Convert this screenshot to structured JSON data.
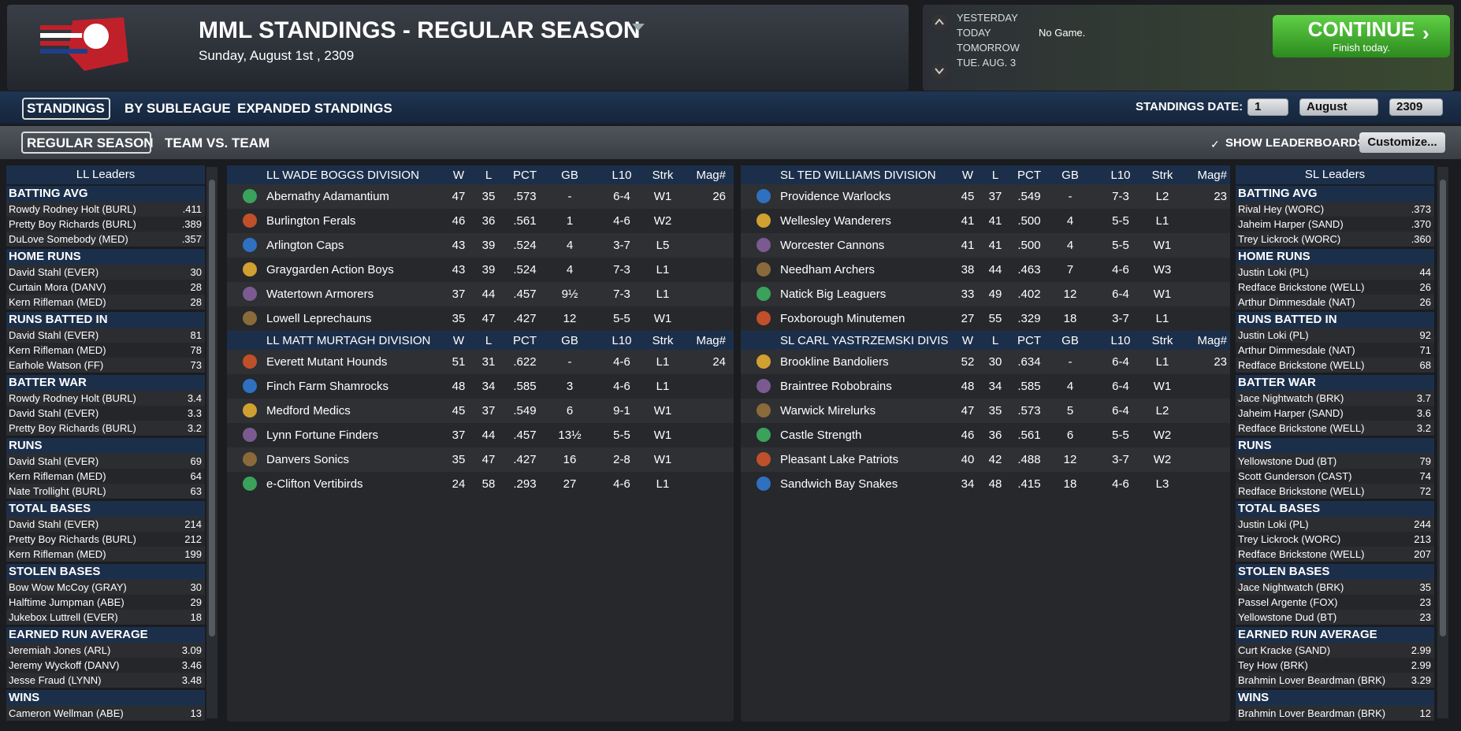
{
  "header": {
    "title": "MML STANDINGS - REGULAR SEASON",
    "date": "Sunday, August 1st , 2309"
  },
  "day_nav": {
    "days": [
      "YESTERDAY",
      "TODAY",
      "TOMORROW",
      "TUE. AUG. 3"
    ],
    "status": "No Game."
  },
  "continue": {
    "label": "CONTINUE",
    "sub": "Finish today."
  },
  "tabs": [
    "STANDINGS",
    "BY SUBLEAGUE",
    "EXPANDED STANDINGS"
  ],
  "standings_date": {
    "label": "STANDINGS DATE:",
    "day": "1",
    "month": "August",
    "year": "2309"
  },
  "subtabs": [
    "REGULAR SEASON",
    "TEAM VS. TEAM"
  ],
  "show_leaderboards": "SHOW LEADERBOARDS",
  "customize": "Customize...",
  "columns": [
    "W",
    "L",
    "PCT",
    "GB",
    "L10",
    "Strk",
    "Mag#"
  ],
  "leaders": [
    {
      "title": "LL Leaders",
      "sections": [
        {
          "title": "BATTING AVG",
          "rows": [
            [
              "Rowdy Rodney Holt (BURL)",
              ".411"
            ],
            [
              "Pretty Boy Richards (BURL)",
              ".389"
            ],
            [
              "DuLove Somebody (MED)",
              ".357"
            ]
          ]
        },
        {
          "title": "HOME RUNS",
          "rows": [
            [
              "David Stahl (EVER)",
              30
            ],
            [
              "Curtain Mora (DANV)",
              28
            ],
            [
              "Kern Rifleman (MED)",
              28
            ]
          ]
        },
        {
          "title": "RUNS BATTED IN",
          "rows": [
            [
              "David Stahl (EVER)",
              81
            ],
            [
              "Kern Rifleman (MED)",
              78
            ],
            [
              "Earhole Watson (FF)",
              73
            ]
          ]
        },
        {
          "title": "BATTER WAR",
          "rows": [
            [
              "Rowdy Rodney Holt (BURL)",
              3.4
            ],
            [
              "David Stahl (EVER)",
              3.3
            ],
            [
              "Pretty Boy Richards (BURL)",
              3.2
            ]
          ]
        },
        {
          "title": "RUNS",
          "rows": [
            [
              "David Stahl (EVER)",
              69
            ],
            [
              "Kern Rifleman (MED)",
              64
            ],
            [
              "Nate Trollight (BURL)",
              63
            ]
          ]
        },
        {
          "title": "TOTAL BASES",
          "rows": [
            [
              "David Stahl (EVER)",
              214
            ],
            [
              "Pretty Boy Richards (BURL)",
              212
            ],
            [
              "Kern Rifleman (MED)",
              199
            ]
          ]
        },
        {
          "title": "STOLEN BASES",
          "rows": [
            [
              "Bow Wow McCoy (GRAY)",
              30
            ],
            [
              "Halftime Jumpman (ABE)",
              29
            ],
            [
              "Jukebox Luttrell (EVER)",
              18
            ]
          ]
        },
        {
          "title": "EARNED RUN AVERAGE",
          "rows": [
            [
              "Jeremiah Jones (ARL)",
              3.09
            ],
            [
              "Jeremy Wyckoff (DANV)",
              3.46
            ],
            [
              "Jesse Fraud (LYNN)",
              3.48
            ]
          ]
        },
        {
          "title": "WINS",
          "rows": [
            [
              "Cameron Wellman (ABE)",
              13
            ]
          ]
        }
      ]
    },
    {
      "title": "SL Leaders",
      "sections": [
        {
          "title": "BATTING AVG",
          "rows": [
            [
              "Rival Hey (WORC)",
              ".373"
            ],
            [
              "Jaheim Harper (SAND)",
              ".370"
            ],
            [
              "Trey Lickrock (WORC)",
              ".360"
            ]
          ]
        },
        {
          "title": "HOME RUNS",
          "rows": [
            [
              "Justin Loki (PL)",
              44
            ],
            [
              "Redface Brickstone (WELL)",
              26
            ],
            [
              "Arthur Dimmesdale (NAT)",
              26
            ]
          ]
        },
        {
          "title": "RUNS BATTED IN",
          "rows": [
            [
              "Justin Loki (PL)",
              92
            ],
            [
              "Arthur Dimmesdale (NAT)",
              71
            ],
            [
              "Redface Brickstone (WELL)",
              68
            ]
          ]
        },
        {
          "title": "BATTER WAR",
          "rows": [
            [
              "Jace Nightwatch (BRK)",
              3.7
            ],
            [
              "Jaheim Harper (SAND)",
              3.6
            ],
            [
              "Redface Brickstone (WELL)",
              3.2
            ]
          ]
        },
        {
          "title": "RUNS",
          "rows": [
            [
              "Yellowstone Dud (BT)",
              79
            ],
            [
              "Scott Gunderson (CAST)",
              74
            ],
            [
              "Redface Brickstone (WELL)",
              72
            ]
          ]
        },
        {
          "title": "TOTAL BASES",
          "rows": [
            [
              "Justin Loki (PL)",
              244
            ],
            [
              "Trey Lickrock (WORC)",
              213
            ],
            [
              "Redface Brickstone (WELL)",
              207
            ]
          ]
        },
        {
          "title": "STOLEN BASES",
          "rows": [
            [
              "Jace Nightwatch (BRK)",
              35
            ],
            [
              "Passel Argente (FOX)",
              23
            ],
            [
              "Yellowstone Dud (BT)",
              23
            ]
          ]
        },
        {
          "title": "EARNED RUN AVERAGE",
          "rows": [
            [
              "Curt Kracke (SAND)",
              2.99
            ],
            [
              "Tey How (BRK)",
              2.99
            ],
            [
              "Brahmin Lover Beardman (BRK)",
              3.29
            ]
          ]
        },
        {
          "title": "WINS",
          "rows": [
            [
              "Brahmin Lover Beardman (BRK)",
              12
            ]
          ]
        }
      ]
    }
  ],
  "divisions": [
    {
      "name": "LL WADE BOGGS DIVISION",
      "magic": 26,
      "rows": [
        [
          "Abernathy Adamantium",
          47,
          35,
          ".573",
          "-",
          "6-4",
          "W1"
        ],
        [
          "Burlington Ferals",
          46,
          36,
          ".561",
          "1",
          "4-6",
          "W2"
        ],
        [
          "Arlington Caps",
          43,
          39,
          ".524",
          "4",
          "3-7",
          "L5"
        ],
        [
          "Graygarden Action Boys",
          43,
          39,
          ".524",
          "4",
          "7-3",
          "L1"
        ],
        [
          "Watertown Armorers",
          37,
          44,
          ".457",
          "9½",
          "7-3",
          "L1"
        ],
        [
          "Lowell Leprechauns",
          35,
          47,
          ".427",
          "12",
          "5-5",
          "W1"
        ]
      ]
    },
    {
      "name": "LL MATT MURTAGH DIVISION",
      "magic": 24,
      "rows": [
        [
          "Everett Mutant Hounds",
          51,
          31,
          ".622",
          "-",
          "4-6",
          "L1"
        ],
        [
          "Finch Farm Shamrocks",
          48,
          34,
          ".585",
          "3",
          "4-6",
          "L1"
        ],
        [
          "Medford Medics",
          45,
          37,
          ".549",
          "6",
          "9-1",
          "W1"
        ],
        [
          "Lynn Fortune Finders",
          37,
          44,
          ".457",
          "13½",
          "5-5",
          "W1"
        ],
        [
          "Danvers Sonics",
          35,
          47,
          ".427",
          "16",
          "2-8",
          "W1"
        ],
        [
          "e-Clifton Vertibirds",
          24,
          58,
          ".293",
          "27",
          "4-6",
          "L1"
        ]
      ]
    },
    {
      "name": "SL TED WILLIAMS DIVISION",
      "magic": 23,
      "rows": [
        [
          "Providence Warlocks",
          45,
          37,
          ".549",
          "-",
          "7-3",
          "L2"
        ],
        [
          "Wellesley Wanderers",
          41,
          41,
          ".500",
          "4",
          "5-5",
          "L1"
        ],
        [
          "Worcester Cannons",
          41,
          41,
          ".500",
          "4",
          "5-5",
          "W1"
        ],
        [
          "Needham Archers",
          38,
          44,
          ".463",
          "7",
          "4-6",
          "W3"
        ],
        [
          "Natick Big Leaguers",
          33,
          49,
          ".402",
          "12",
          "6-4",
          "W1"
        ],
        [
          "Foxborough Minutemen",
          27,
          55,
          ".329",
          "18",
          "3-7",
          "L1"
        ]
      ]
    },
    {
      "name": "SL CARL YASTRZEMSKI DIVISION",
      "magic": 23,
      "rows": [
        [
          "Brookline Bandoliers",
          52,
          30,
          ".634",
          "-",
          "6-4",
          "L1"
        ],
        [
          "Braintree Robobrains",
          48,
          34,
          ".585",
          "4",
          "6-4",
          "W1"
        ],
        [
          "Warwick Mirelurks",
          47,
          35,
          ".573",
          "5",
          "6-4",
          "L2"
        ],
        [
          "Castle Strength",
          46,
          36,
          ".561",
          "6",
          "5-5",
          "W2"
        ],
        [
          "Pleasant Lake Patriots",
          40,
          42,
          ".488",
          "12",
          "3-7",
          "W2"
        ],
        [
          "Sandwich Bay Snakes",
          34,
          48,
          ".415",
          "18",
          "4-6",
          "L3"
        ]
      ]
    }
  ]
}
